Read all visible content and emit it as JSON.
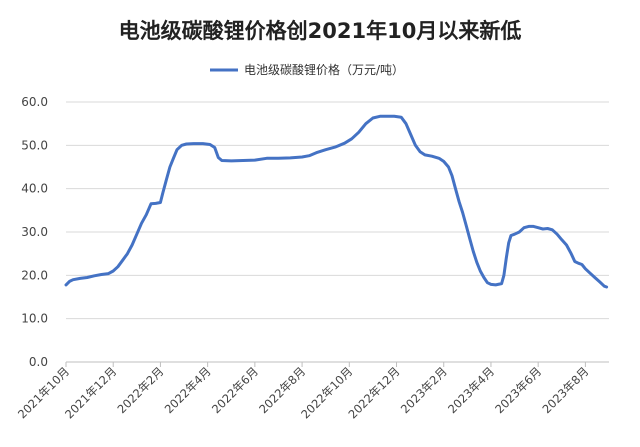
{
  "chart_data": {
    "type": "line",
    "title": "电池级碳酸锂价格创2021年10月以来新低",
    "legend_position": "top-center",
    "grid": true,
    "ylim": [
      0,
      60
    ],
    "yticks": [
      "0.0",
      "10.0",
      "20.0",
      "30.0",
      "40.0",
      "50.0",
      "60.0"
    ],
    "xlim": [
      0,
      23
    ],
    "xticks": [
      {
        "month": 0,
        "label": "2021年10月"
      },
      {
        "month": 2,
        "label": "2021年12月"
      },
      {
        "month": 4,
        "label": "2022年2月"
      },
      {
        "month": 6,
        "label": "2022年4月"
      },
      {
        "month": 8,
        "label": "2022年6月"
      },
      {
        "month": 10,
        "label": "2022年8月"
      },
      {
        "month": 12,
        "label": "2022年10月"
      },
      {
        "month": 14,
        "label": "2022年12月"
      },
      {
        "month": 16,
        "label": "2023年2月"
      },
      {
        "month": 18,
        "label": "2023年4月"
      },
      {
        "month": 20,
        "label": "2023年6月"
      },
      {
        "month": 22,
        "label": "2023年8月"
      }
    ],
    "series": [
      {
        "name": "电池级碳酸锂价格（万元/吨）",
        "color": "#4472c4",
        "points": [
          [
            0.0,
            17.8
          ],
          [
            0.15,
            18.6
          ],
          [
            0.3,
            19.0
          ],
          [
            0.6,
            19.3
          ],
          [
            0.9,
            19.5
          ],
          [
            1.2,
            19.9
          ],
          [
            1.5,
            20.2
          ],
          [
            1.8,
            20.4
          ],
          [
            2.0,
            21.0
          ],
          [
            2.2,
            22.0
          ],
          [
            2.4,
            23.5
          ],
          [
            2.6,
            25.0
          ],
          [
            2.8,
            27.0
          ],
          [
            3.0,
            29.5
          ],
          [
            3.2,
            32.0
          ],
          [
            3.4,
            34.0
          ],
          [
            3.6,
            36.5
          ],
          [
            3.8,
            36.6
          ],
          [
            4.0,
            36.8
          ],
          [
            4.1,
            39.0
          ],
          [
            4.25,
            42.0
          ],
          [
            4.4,
            45.0
          ],
          [
            4.55,
            47.0
          ],
          [
            4.7,
            49.0
          ],
          [
            4.9,
            50.0
          ],
          [
            5.1,
            50.3
          ],
          [
            5.4,
            50.4
          ],
          [
            5.8,
            50.4
          ],
          [
            6.1,
            50.2
          ],
          [
            6.3,
            49.5
          ],
          [
            6.45,
            47.2
          ],
          [
            6.6,
            46.5
          ],
          [
            7.0,
            46.4
          ],
          [
            7.5,
            46.5
          ],
          [
            8.0,
            46.6
          ],
          [
            8.5,
            47.0
          ],
          [
            9.0,
            47.0
          ],
          [
            9.5,
            47.1
          ],
          [
            10.0,
            47.3
          ],
          [
            10.3,
            47.6
          ],
          [
            10.6,
            48.3
          ],
          [
            11.0,
            49.0
          ],
          [
            11.4,
            49.6
          ],
          [
            11.8,
            50.5
          ],
          [
            12.1,
            51.5
          ],
          [
            12.4,
            53.0
          ],
          [
            12.7,
            55.0
          ],
          [
            13.0,
            56.3
          ],
          [
            13.3,
            56.7
          ],
          [
            13.6,
            56.7
          ],
          [
            13.9,
            56.7
          ],
          [
            14.2,
            56.5
          ],
          [
            14.4,
            55.0
          ],
          [
            14.6,
            52.5
          ],
          [
            14.8,
            50.0
          ],
          [
            15.0,
            48.5
          ],
          [
            15.2,
            47.8
          ],
          [
            15.5,
            47.5
          ],
          [
            15.8,
            47.0
          ],
          [
            16.0,
            46.3
          ],
          [
            16.2,
            45.0
          ],
          [
            16.35,
            43.0
          ],
          [
            16.5,
            40.0
          ],
          [
            16.65,
            37.0
          ],
          [
            16.8,
            34.5
          ],
          [
            16.95,
            31.5
          ],
          [
            17.1,
            28.5
          ],
          [
            17.25,
            25.5
          ],
          [
            17.4,
            23.0
          ],
          [
            17.55,
            21.0
          ],
          [
            17.7,
            19.5
          ],
          [
            17.85,
            18.3
          ],
          [
            18.0,
            17.9
          ],
          [
            18.2,
            17.8
          ],
          [
            18.45,
            18.1
          ],
          [
            18.55,
            20.0
          ],
          [
            18.65,
            24.0
          ],
          [
            18.75,
            27.5
          ],
          [
            18.85,
            29.2
          ],
          [
            19.0,
            29.5
          ],
          [
            19.2,
            30.0
          ],
          [
            19.4,
            31.0
          ],
          [
            19.6,
            31.3
          ],
          [
            19.8,
            31.3
          ],
          [
            20.0,
            31.0
          ],
          [
            20.2,
            30.7
          ],
          [
            20.4,
            30.8
          ],
          [
            20.6,
            30.5
          ],
          [
            20.8,
            29.5
          ],
          [
            21.0,
            28.2
          ],
          [
            21.2,
            27.0
          ],
          [
            21.4,
            25.0
          ],
          [
            21.55,
            23.2
          ],
          [
            21.7,
            22.8
          ],
          [
            21.85,
            22.5
          ],
          [
            22.0,
            21.5
          ],
          [
            22.2,
            20.5
          ],
          [
            22.4,
            19.5
          ],
          [
            22.6,
            18.5
          ],
          [
            22.8,
            17.5
          ],
          [
            22.9,
            17.3
          ]
        ]
      }
    ]
  }
}
